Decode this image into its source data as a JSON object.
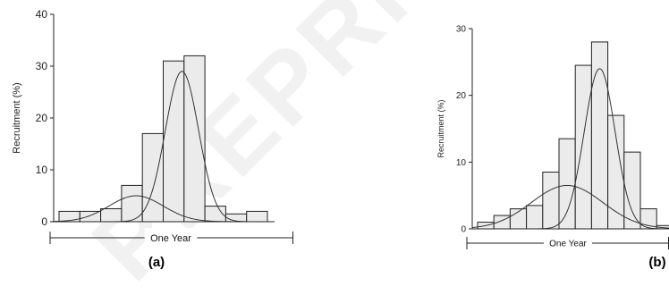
{
  "watermark": "PREPRINT",
  "chart_data": [
    {
      "type": "bar",
      "panel_label": "(a)",
      "ylabel": "Recruitment (%)",
      "xlabel": "One Year",
      "ylim": [
        0,
        40
      ],
      "yticks": [
        0,
        10,
        20,
        30,
        40
      ],
      "grid": false,
      "legend": "none",
      "values": [
        2,
        2,
        2.5,
        7,
        17,
        31,
        32,
        3,
        1.5,
        2
      ],
      "curves": [
        {
          "peak": 5,
          "center_bin": 3.7,
          "sd_bins": 1.3
        },
        {
          "peak": 29,
          "center_bin": 5.9,
          "sd_bins": 0.8
        }
      ],
      "colors": {
        "bar_fill": "#ebebeb",
        "bar_stroke": "#222222",
        "curve": "#333333"
      }
    },
    {
      "type": "bar",
      "panel_label": "(b)",
      "ylabel": "Recruitment (%)",
      "xlabel": "One Year",
      "ylim": [
        0,
        30
      ],
      "yticks": [
        0,
        10,
        20,
        30
      ],
      "grid": false,
      "legend": "none",
      "values": [
        1,
        2,
        3,
        3.5,
        8.5,
        13.5,
        24.5,
        28,
        17,
        11.5,
        3,
        0.5
      ],
      "curves": [
        {
          "peak": 6.5,
          "center_bin": 5.5,
          "sd_bins": 2.2
        },
        {
          "peak": 24,
          "center_bin": 7.5,
          "sd_bins": 0.95
        }
      ],
      "colors": {
        "bar_fill": "#ebebeb",
        "bar_stroke": "#222222",
        "curve": "#333333"
      }
    }
  ]
}
